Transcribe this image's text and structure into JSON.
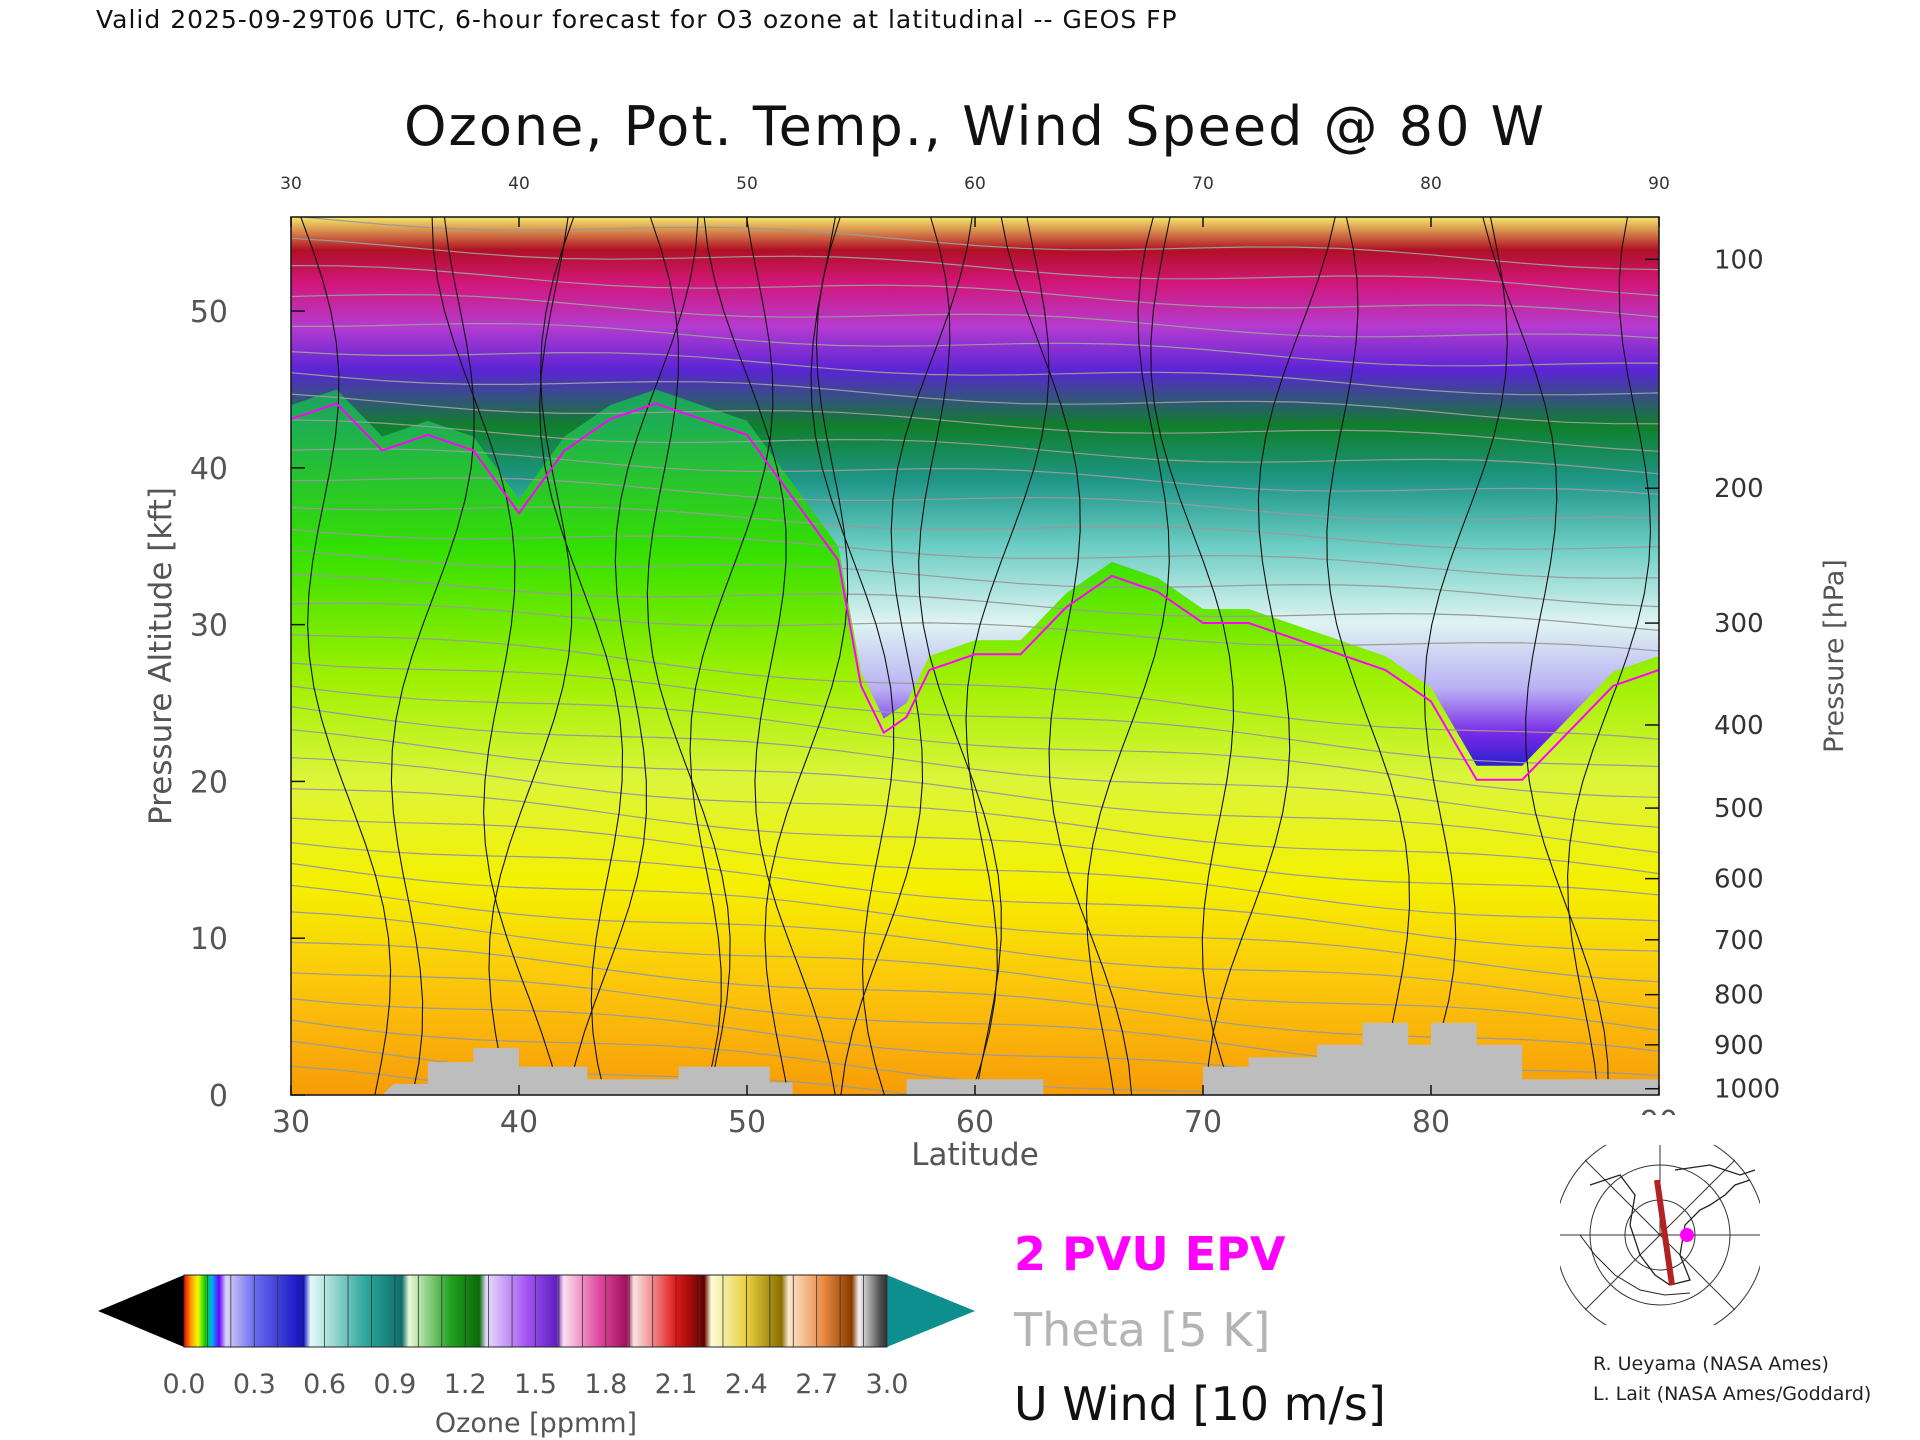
{
  "header": "Valid 2025-09-29T06 UTC, 6-hour forecast for O3 ozone at latitudinal -- GEOS FP",
  "chart_data": {
    "type": "heatmap",
    "title": "Ozone, Pot. Temp., Wind Speed @ 80 W",
    "xlabel": "Latitude",
    "ylabel": "Pressure Altitude [kft]",
    "ylabel_right": "Pressure [hPa]",
    "xlim": [
      30,
      90
    ],
    "ylim": [
      0,
      56
    ],
    "x_ticks": [
      30,
      40,
      50,
      60,
      70,
      80,
      90
    ],
    "y_ticks": [
      0,
      10,
      20,
      30,
      40,
      50
    ],
    "pressure_ticks": [
      {
        "label": "100",
        "kft": 53.3
      },
      {
        "label": "200",
        "kft": 38.7
      },
      {
        "label": "300",
        "kft": 30.1
      },
      {
        "label": "400",
        "kft": 23.6
      },
      {
        "label": "500",
        "kft": 18.3
      },
      {
        "label": "600",
        "kft": 13.8
      },
      {
        "label": "700",
        "kft": 9.9
      },
      {
        "label": "800",
        "kft": 6.4
      },
      {
        "label": "900",
        "kft": 3.2
      },
      {
        "label": "1000",
        "kft": 0.4
      }
    ],
    "tropopause_2pvu_kft": {
      "lat": [
        30,
        32,
        34,
        36,
        38,
        40,
        42,
        44,
        46,
        48,
        50,
        52,
        54,
        55,
        56,
        57,
        58,
        60,
        62,
        64,
        66,
        68,
        70,
        72,
        74,
        76,
        78,
        80,
        82,
        84,
        86,
        88,
        90
      ],
      "kft": [
        44,
        45,
        42,
        43,
        42,
        38,
        42,
        44,
        45,
        44,
        43,
        39,
        35,
        27,
        24,
        25,
        28,
        29,
        29,
        32,
        34,
        33,
        31,
        31,
        30,
        29,
        28,
        26,
        21,
        21,
        24,
        27,
        28
      ]
    },
    "ozone_colorbar": {
      "label": "Ozone [ppmm]",
      "ticks": [
        "0.0",
        "0.3",
        "0.6",
        "0.9",
        "1.2",
        "1.5",
        "1.8",
        "2.1",
        "2.4",
        "2.7",
        "3.0"
      ]
    },
    "legend": [
      {
        "label": "2 PVU EPV",
        "color": "#ff00ff"
      },
      {
        "label": "Theta [5 K]",
        "color": "#b4b4b4"
      },
      {
        "label": "U Wind [10 m/s]",
        "color": "#111111"
      }
    ]
  },
  "credits": [
    "R. Ueyama (NASA Ames)",
    "L. Lait (NASA Ames/Goddard)"
  ]
}
